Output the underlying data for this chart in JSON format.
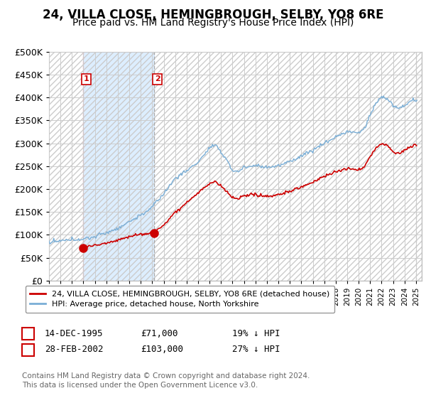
{
  "title": "24, VILLA CLOSE, HEMINGBROUGH, SELBY, YO8 6RE",
  "subtitle": "Price paid vs. HM Land Registry's House Price Index (HPI)",
  "legend_label_red": "24, VILLA CLOSE, HEMINGBROUGH, SELBY, YO8 6RE (detached house)",
  "legend_label_blue": "HPI: Average price, detached house, North Yorkshire",
  "footer": "Contains HM Land Registry data © Crown copyright and database right 2024.\nThis data is licensed under the Open Government Licence v3.0.",
  "point1_date": "14-DEC-1995",
  "point1_price": "£71,000",
  "point1_hpi": "19% ↓ HPI",
  "point2_date": "28-FEB-2002",
  "point2_price": "£103,000",
  "point2_hpi": "27% ↓ HPI",
  "ylim": [
    0,
    500000
  ],
  "xlim_start": 1993.0,
  "xlim_end": 2025.5,
  "red_color": "#cc0000",
  "blue_color": "#7aaed6",
  "shade_color": "#ddeeff",
  "point1_x": 1995.96,
  "point1_y": 71000,
  "point2_x": 2002.16,
  "point2_y": 103000,
  "hatch_color": "#cccccc",
  "grid_color": "#cccccc",
  "title_fontsize": 12,
  "subtitle_fontsize": 10,
  "axis_fontsize": 9
}
